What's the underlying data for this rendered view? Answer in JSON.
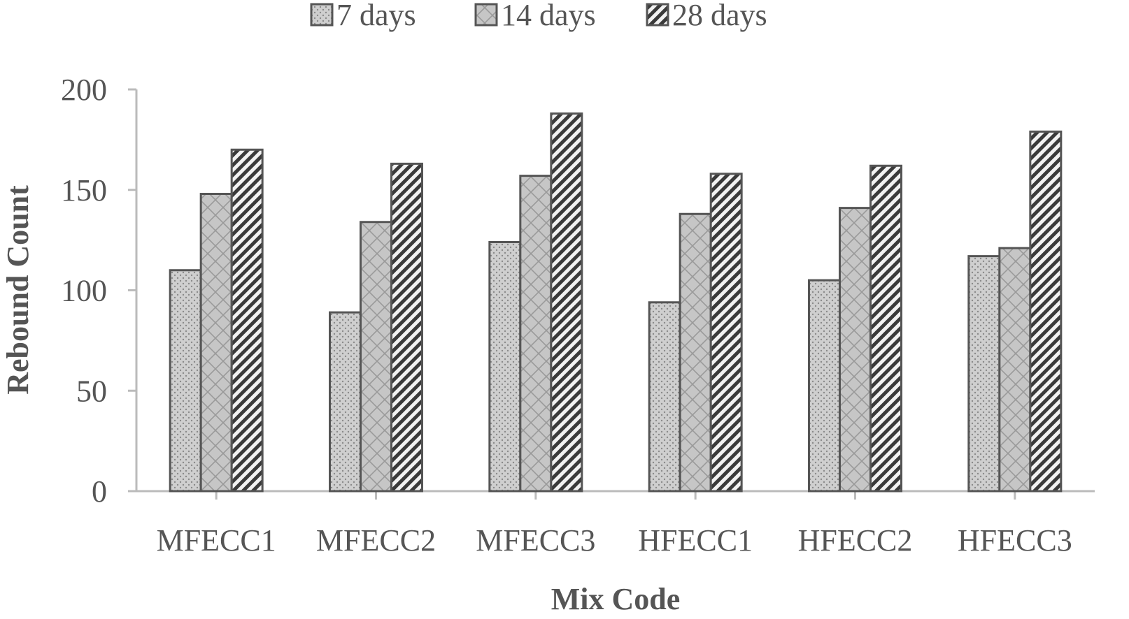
{
  "chart_data": {
    "type": "bar",
    "title": "",
    "xlabel": "Mix Code",
    "ylabel": "Rebound Count",
    "categories": [
      "MFECC1",
      "MFECC2",
      "MFECC3",
      "HFECC1",
      "HFECC2",
      "HFECC3"
    ],
    "series": [
      {
        "name": "7 days",
        "values": [
          110,
          89,
          124,
          94,
          105,
          117
        ],
        "pattern": "dots"
      },
      {
        "name": "14 days",
        "values": [
          148,
          134,
          157,
          138,
          141,
          121
        ],
        "pattern": "crosshatch"
      },
      {
        "name": "28 days",
        "values": [
          170,
          163,
          188,
          158,
          162,
          179
        ],
        "pattern": "diagonal"
      }
    ],
    "ylim": [
      0,
      200
    ],
    "yticks": [
      0,
      50,
      100,
      150,
      200
    ],
    "grid": false,
    "legend_position": "top-center",
    "colors": {
      "bar_fill": "#c8c8c8",
      "bar_stroke": "#555555",
      "axis": "#bbbbbb",
      "text": "#555555"
    }
  }
}
